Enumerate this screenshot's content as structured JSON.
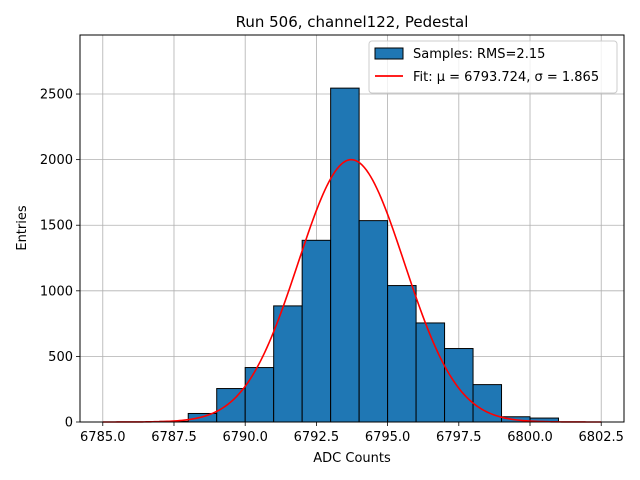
{
  "chart_data": {
    "type": "bar",
    "title": "Run 506, channel122, Pedestal",
    "xlabel": "ADC Counts",
    "ylabel": "Entries",
    "xlim": [
      6784.2,
      6803.3
    ],
    "ylim": [
      0,
      2950
    ],
    "grid": true,
    "legend_position": "top-right",
    "x_ticks": [
      6785.0,
      6787.5,
      6790.0,
      6792.5,
      6795.0,
      6797.5,
      6800.0,
      6802.5
    ],
    "x_tick_labels": [
      "6785.0",
      "6787.5",
      "6790.0",
      "6792.5",
      "6795.0",
      "6797.5",
      "6800.0",
      "6802.5"
    ],
    "y_ticks": [
      0,
      500,
      1000,
      1500,
      2000,
      2500
    ],
    "y_tick_labels": [
      "0",
      "500",
      "1000",
      "1500",
      "2000",
      "2500"
    ],
    "bin_edges": [
      6785.0,
      6786.0,
      6787.0,
      6788.0,
      6789.0,
      6790.0,
      6791.0,
      6792.0,
      6793.0,
      6794.0,
      6795.0,
      6796.0,
      6797.0,
      6798.0,
      6799.0,
      6800.0,
      6801.0
    ],
    "values": [
      0,
      0,
      5,
      65,
      255,
      415,
      885,
      1385,
      2545,
      1535,
      1040,
      755,
      560,
      285,
      40,
      30
    ],
    "series": [
      {
        "name": "Samples: RMS=2.15",
        "kind": "histogram",
        "color": "#1f77b4"
      },
      {
        "name": "Fit: μ = 6793.724, σ = 1.865",
        "kind": "gaussian",
        "color": "#ff0000",
        "mu": 6793.724,
        "sigma": 1.865,
        "amplitude": 2000,
        "x_range": [
          6785.0,
          6802.5
        ]
      }
    ]
  }
}
